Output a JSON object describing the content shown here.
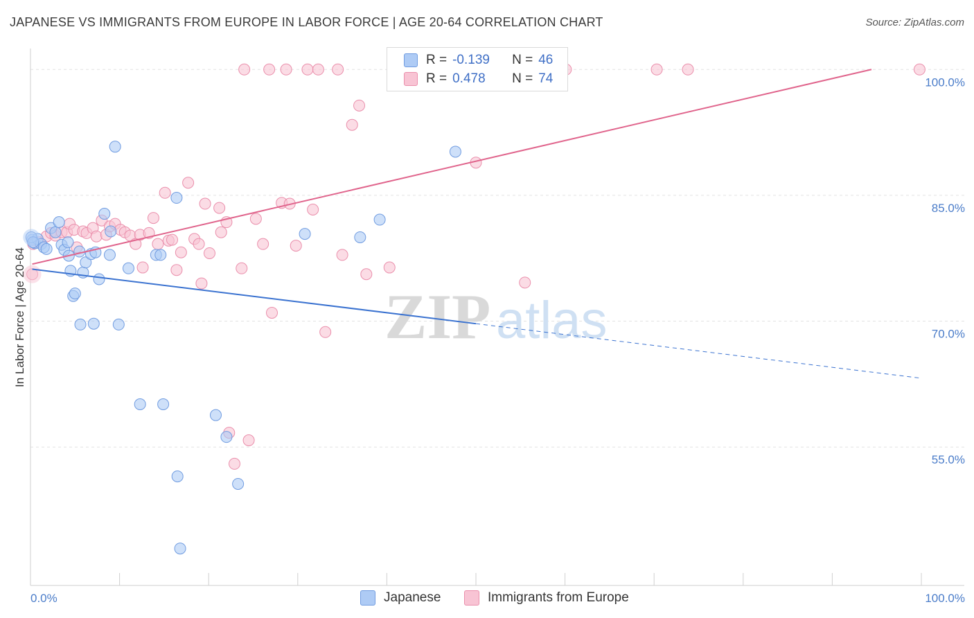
{
  "header": {
    "title": "JAPANESE VS IMMIGRANTS FROM EUROPE IN LABOR FORCE | AGE 20-64 CORRELATION CHART",
    "source": "Source: ZipAtlas.com"
  },
  "watermark": {
    "zip": "ZIP",
    "atlas": "atlas"
  },
  "colors": {
    "japanese_fill": "#aecbf5",
    "japanese_stroke": "#6f9be0",
    "japanese_line": "#3a72d0",
    "europe_fill": "#f8c4d4",
    "europe_stroke": "#ea8eab",
    "europe_line": "#e0648c",
    "tick_label": "#4a7cc9",
    "grid": "#e2e2e2"
  },
  "stats": {
    "japanese": {
      "r_label": "R =",
      "r_value": "-0.139",
      "n_label": "N =",
      "n_value": "46"
    },
    "europe": {
      "r_label": "R =",
      "r_value": "0.478",
      "n_label": "N =",
      "n_value": "74"
    }
  },
  "chart_data": {
    "type": "scatter",
    "title": "JAPANESE VS IMMIGRANTS FROM EUROPE IN LABOR FORCE | AGE 20-64 CORRELATION CHART",
    "xlabel": "",
    "ylabel": "In Labor Force | Age 20-64",
    "xlim": [
      0,
      100
    ],
    "ylim": [
      38.5,
      102.5
    ],
    "x_tick_labels": [
      {
        "value": 0,
        "label": "0.0%"
      },
      {
        "value": 100,
        "label": "100.0%"
      }
    ],
    "y_ticks": [
      {
        "value": 55,
        "label": "55.0%"
      },
      {
        "value": 70,
        "label": "70.0%"
      },
      {
        "value": 85,
        "label": "85.0%"
      },
      {
        "value": 100,
        "label": "100.0%"
      }
    ],
    "grid": "horizontal dashed",
    "legend": "bottom-center",
    "series": [
      {
        "name": "Japanese",
        "trend": {
          "x_start": 0.2,
          "y_start": 76.2,
          "x_solid_end": 50.0,
          "y_solid_end": 69.7,
          "x_dash_end": 100.0,
          "y_dash_end": 63.2
        },
        "points": [
          [
            0.2,
            79.7
          ],
          [
            0.5,
            79.3
          ],
          [
            0.8,
            79.8
          ],
          [
            1.2,
            79.2
          ],
          [
            1.5,
            78.8
          ],
          [
            1.8,
            78.6
          ],
          [
            2.3,
            81.1
          ],
          [
            2.8,
            80.6
          ],
          [
            3.2,
            81.8
          ],
          [
            3.5,
            79.1
          ],
          [
            3.8,
            78.5
          ],
          [
            4.2,
            79.4
          ],
          [
            4.3,
            77.8
          ],
          [
            4.5,
            76.0
          ],
          [
            4.8,
            73.0
          ],
          [
            5.0,
            73.3
          ],
          [
            5.5,
            78.3
          ],
          [
            5.6,
            69.6
          ],
          [
            5.9,
            75.8
          ],
          [
            6.2,
            77.0
          ],
          [
            6.8,
            78.0
          ],
          [
            7.1,
            69.7
          ],
          [
            7.3,
            78.2
          ],
          [
            7.7,
            75.0
          ],
          [
            8.3,
            82.8
          ],
          [
            8.9,
            77.9
          ],
          [
            9.0,
            80.7
          ],
          [
            9.5,
            90.8
          ],
          [
            9.9,
            69.6
          ],
          [
            11.0,
            76.3
          ],
          [
            12.3,
            60.1
          ],
          [
            14.1,
            77.9
          ],
          [
            14.6,
            77.9
          ],
          [
            14.9,
            60.1
          ],
          [
            16.4,
            84.7
          ],
          [
            16.5,
            51.5
          ],
          [
            16.8,
            42.9
          ],
          [
            20.8,
            58.8
          ],
          [
            22.0,
            56.2
          ],
          [
            23.3,
            50.6
          ],
          [
            30.8,
            80.4
          ],
          [
            37.0,
            80.0
          ],
          [
            39.2,
            82.1
          ],
          [
            47.7,
            90.2
          ],
          [
            0.1,
            80.0
          ],
          [
            0.3,
            79.4
          ]
        ]
      },
      {
        "name": "Immigrants from Europe",
        "trend": {
          "x_start": 0.2,
          "y_start": 76.8,
          "x_end": 94.4,
          "y_end": 100.0
        },
        "points": [
          [
            0.2,
            75.6
          ],
          [
            0.3,
            79.2
          ],
          [
            1.0,
            79.4
          ],
          [
            1.8,
            80.1
          ],
          [
            2.3,
            80.5
          ],
          [
            2.8,
            80.2
          ],
          [
            3.5,
            80.6
          ],
          [
            4.1,
            80.6
          ],
          [
            4.4,
            81.6
          ],
          [
            4.9,
            80.9
          ],
          [
            5.2,
            78.8
          ],
          [
            5.9,
            80.7
          ],
          [
            6.3,
            80.5
          ],
          [
            7.0,
            81.1
          ],
          [
            7.4,
            80.1
          ],
          [
            8.0,
            82.0
          ],
          [
            8.5,
            80.3
          ],
          [
            8.9,
            81.3
          ],
          [
            9.5,
            81.6
          ],
          [
            10.1,
            80.9
          ],
          [
            10.6,
            80.6
          ],
          [
            11.2,
            80.2
          ],
          [
            11.8,
            79.2
          ],
          [
            12.3,
            80.3
          ],
          [
            12.6,
            76.4
          ],
          [
            13.3,
            80.5
          ],
          [
            13.8,
            82.3
          ],
          [
            14.3,
            79.2
          ],
          [
            15.1,
            85.3
          ],
          [
            15.5,
            79.6
          ],
          [
            15.9,
            79.7
          ],
          [
            16.4,
            76.1
          ],
          [
            16.9,
            78.2
          ],
          [
            17.7,
            86.5
          ],
          [
            18.4,
            79.8
          ],
          [
            18.9,
            79.2
          ],
          [
            19.2,
            74.5
          ],
          [
            19.6,
            84.0
          ],
          [
            20.1,
            78.1
          ],
          [
            21.2,
            83.5
          ],
          [
            21.4,
            80.6
          ],
          [
            22.0,
            81.8
          ],
          [
            22.3,
            56.7
          ],
          [
            22.9,
            53.0
          ],
          [
            23.7,
            76.3
          ],
          [
            24.0,
            100.0
          ],
          [
            24.5,
            55.8
          ],
          [
            25.3,
            82.2
          ],
          [
            26.1,
            79.2
          ],
          [
            26.8,
            100.0
          ],
          [
            27.1,
            71.0
          ],
          [
            28.2,
            84.1
          ],
          [
            28.7,
            100.0
          ],
          [
            29.1,
            84.0
          ],
          [
            29.8,
            79.0
          ],
          [
            31.1,
            100.0
          ],
          [
            31.7,
            83.3
          ],
          [
            32.3,
            100.0
          ],
          [
            33.1,
            68.7
          ],
          [
            34.5,
            100.0
          ],
          [
            35.0,
            77.9
          ],
          [
            36.1,
            93.4
          ],
          [
            36.9,
            95.7
          ],
          [
            37.7,
            75.6
          ],
          [
            40.3,
            76.4
          ],
          [
            40.9,
            100.0
          ],
          [
            50.0,
            88.9
          ],
          [
            55.5,
            74.6
          ],
          [
            56.0,
            100.0
          ],
          [
            58.9,
            100.0
          ],
          [
            60.1,
            100.0
          ],
          [
            70.3,
            100.0
          ],
          [
            73.8,
            100.0
          ],
          [
            99.8,
            100.0
          ]
        ]
      }
    ]
  }
}
